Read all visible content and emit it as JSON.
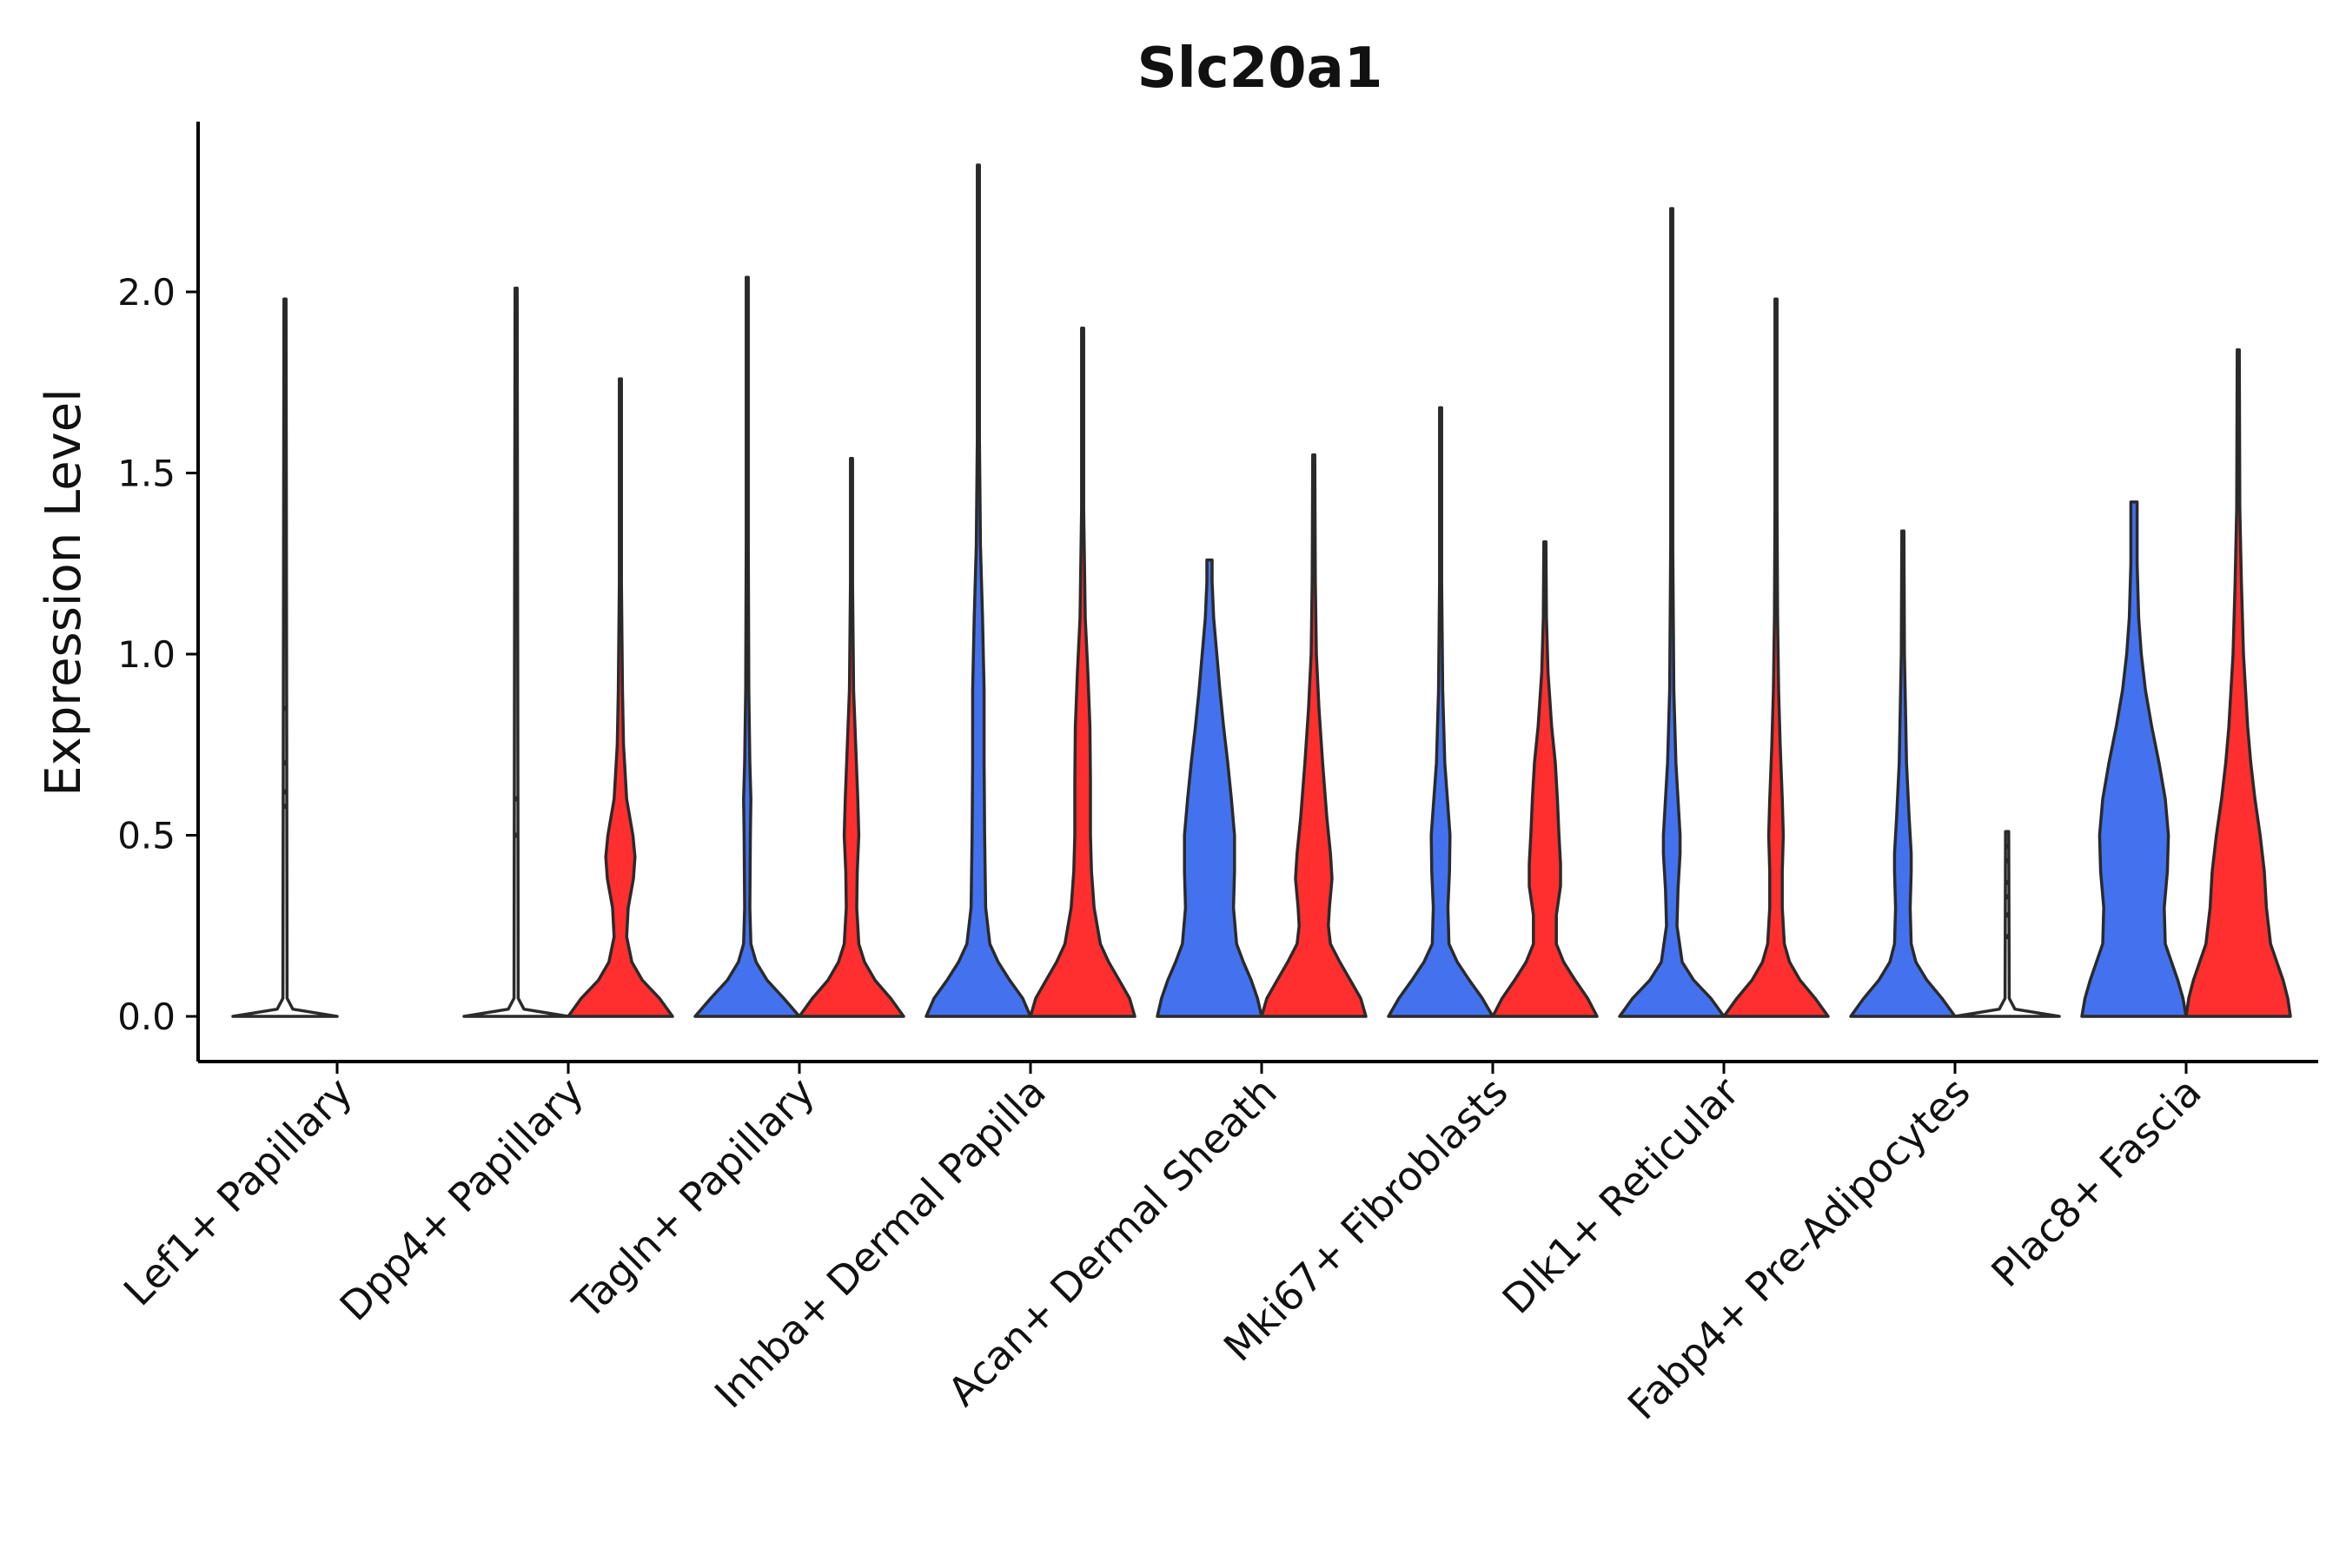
{
  "chart_data": {
    "type": "violin",
    "title": "Slc20a1",
    "xlabel": "",
    "ylabel": "Expression Level",
    "ylim": [
      -0.12,
      2.45
    ],
    "yticks": [
      0.0,
      0.5,
      1.0,
      1.5,
      2.0
    ],
    "ytick_labels": [
      "0.0",
      "0.5",
      "1.0",
      "1.5",
      "2.0"
    ],
    "categories": [
      "Lef1+ Papillary",
      "Dpp4+ Papillary",
      "Tagln+ Papillary",
      "Inhba+ Dermal Papilla",
      "Acan+ Dermal Sheath",
      "Mki67+ Fibroblasts",
      "Dlk1+ Reticular",
      "Fabp4+ Pre-Adipocytes",
      "Plac8+ Fascia"
    ],
    "groups": [
      {
        "name": "group-1",
        "color": "#4472ef"
      },
      {
        "name": "group-2",
        "color": "#ff2f2f"
      }
    ],
    "violins": [
      {
        "category": "Lef1+ Papillary",
        "group": "group-1",
        "fill": "none",
        "max": 1.98,
        "density": [
          [
            0,
            1.0
          ],
          [
            0.02,
            0.15
          ],
          [
            0.05,
            0.04
          ],
          [
            1.98,
            0.02
          ]
        ],
        "dots": [
          0.58,
          0.62,
          0.7,
          0.85
        ]
      },
      {
        "category": "Dpp4+ Papillary",
        "group": "group-1",
        "fill": "none",
        "max": 2.01,
        "density": [
          [
            0,
            1.0
          ],
          [
            0.02,
            0.15
          ],
          [
            0.05,
            0.04
          ],
          [
            2.01,
            0.02
          ]
        ],
        "dots": [
          0.5,
          0.6
        ]
      },
      {
        "category": "Dpp4+ Papillary",
        "group": "group-2",
        "fill": "#ff2f2f",
        "max": 1.76,
        "density": [
          [
            0,
            1.0
          ],
          [
            0.05,
            0.75
          ],
          [
            0.1,
            0.42
          ],
          [
            0.15,
            0.22
          ],
          [
            0.22,
            0.12
          ],
          [
            0.3,
            0.15
          ],
          [
            0.38,
            0.25
          ],
          [
            0.44,
            0.28
          ],
          [
            0.5,
            0.24
          ],
          [
            0.6,
            0.12
          ],
          [
            0.75,
            0.06
          ],
          [
            0.9,
            0.04
          ],
          [
            1.2,
            0.02
          ],
          [
            1.76,
            0.02
          ]
        ]
      },
      {
        "category": "Tagln+ Papillary",
        "group": "group-1",
        "fill": "#4472ef",
        "max": 2.04,
        "density": [
          [
            0,
            1.0
          ],
          [
            0.05,
            0.7
          ],
          [
            0.1,
            0.38
          ],
          [
            0.15,
            0.17
          ],
          [
            0.2,
            0.07
          ],
          [
            0.3,
            0.05
          ],
          [
            0.5,
            0.06
          ],
          [
            0.6,
            0.07
          ],
          [
            0.7,
            0.05
          ],
          [
            0.9,
            0.03
          ],
          [
            1.3,
            0.02
          ],
          [
            2.04,
            0.02
          ]
        ]
      },
      {
        "category": "Tagln+ Papillary",
        "group": "group-2",
        "fill": "#ff2f2f",
        "max": 1.54,
        "density": [
          [
            0,
            1.0
          ],
          [
            0.05,
            0.75
          ],
          [
            0.1,
            0.45
          ],
          [
            0.15,
            0.25
          ],
          [
            0.2,
            0.14
          ],
          [
            0.3,
            0.1
          ],
          [
            0.4,
            0.11
          ],
          [
            0.5,
            0.14
          ],
          [
            0.6,
            0.12
          ],
          [
            0.75,
            0.08
          ],
          [
            0.9,
            0.04
          ],
          [
            1.2,
            0.02
          ],
          [
            1.54,
            0.02
          ]
        ]
      },
      {
        "category": "Inhba+ Dermal Papilla",
        "group": "group-1",
        "fill": "#4472ef",
        "max": 2.35,
        "density": [
          [
            0,
            1.0
          ],
          [
            0.05,
            0.85
          ],
          [
            0.1,
            0.6
          ],
          [
            0.15,
            0.38
          ],
          [
            0.2,
            0.22
          ],
          [
            0.3,
            0.14
          ],
          [
            0.5,
            0.12
          ],
          [
            0.7,
            0.11
          ],
          [
            0.9,
            0.11
          ],
          [
            1.1,
            0.08
          ],
          [
            1.3,
            0.04
          ],
          [
            1.6,
            0.02
          ],
          [
            2.35,
            0.02
          ]
        ]
      },
      {
        "category": "Inhba+ Dermal Papilla",
        "group": "group-2",
        "fill": "#ff2f2f",
        "max": 1.9,
        "density": [
          [
            0,
            1.0
          ],
          [
            0.05,
            0.9
          ],
          [
            0.1,
            0.7
          ],
          [
            0.15,
            0.5
          ],
          [
            0.2,
            0.34
          ],
          [
            0.3,
            0.22
          ],
          [
            0.4,
            0.17
          ],
          [
            0.5,
            0.15
          ],
          [
            0.65,
            0.15
          ],
          [
            0.8,
            0.14
          ],
          [
            0.95,
            0.1
          ],
          [
            1.1,
            0.05
          ],
          [
            1.4,
            0.02
          ],
          [
            1.9,
            0.02
          ]
        ]
      },
      {
        "category": "Acan+ Dermal Sheath",
        "group": "group-1",
        "fill": "#4472ef",
        "max": 1.26,
        "density": [
          [
            0,
            1.0
          ],
          [
            0.05,
            0.92
          ],
          [
            0.1,
            0.8
          ],
          [
            0.15,
            0.65
          ],
          [
            0.2,
            0.52
          ],
          [
            0.3,
            0.46
          ],
          [
            0.4,
            0.48
          ],
          [
            0.5,
            0.48
          ],
          [
            0.6,
            0.42
          ],
          [
            0.7,
            0.35
          ],
          [
            0.8,
            0.27
          ],
          [
            0.9,
            0.2
          ],
          [
            1.0,
            0.14
          ],
          [
            1.1,
            0.08
          ],
          [
            1.2,
            0.05
          ],
          [
            1.26,
            0.05
          ]
        ]
      },
      {
        "category": "Acan+ Dermal Sheath",
        "group": "group-2",
        "fill": "#ff2f2f",
        "max": 1.55,
        "density": [
          [
            0,
            1.0
          ],
          [
            0.05,
            0.9
          ],
          [
            0.1,
            0.7
          ],
          [
            0.15,
            0.5
          ],
          [
            0.2,
            0.32
          ],
          [
            0.25,
            0.28
          ],
          [
            0.3,
            0.3
          ],
          [
            0.38,
            0.35
          ],
          [
            0.45,
            0.32
          ],
          [
            0.55,
            0.25
          ],
          [
            0.7,
            0.17
          ],
          [
            0.85,
            0.1
          ],
          [
            1.0,
            0.05
          ],
          [
            1.2,
            0.03
          ],
          [
            1.55,
            0.02
          ]
        ]
      },
      {
        "category": "Mki67+ Fibroblasts",
        "group": "group-1",
        "fill": "#4472ef",
        "max": 1.68,
        "density": [
          [
            0,
            1.0
          ],
          [
            0.05,
            0.8
          ],
          [
            0.1,
            0.55
          ],
          [
            0.15,
            0.32
          ],
          [
            0.2,
            0.16
          ],
          [
            0.3,
            0.14
          ],
          [
            0.4,
            0.17
          ],
          [
            0.5,
            0.18
          ],
          [
            0.6,
            0.13
          ],
          [
            0.7,
            0.08
          ],
          [
            0.9,
            0.04
          ],
          [
            1.2,
            0.02
          ],
          [
            1.68,
            0.02
          ]
        ]
      },
      {
        "category": "Mki67+ Fibroblasts",
        "group": "group-2",
        "fill": "#ff2f2f",
        "max": 1.31,
        "density": [
          [
            0,
            1.0
          ],
          [
            0.05,
            0.82
          ],
          [
            0.1,
            0.58
          ],
          [
            0.15,
            0.36
          ],
          [
            0.2,
            0.22
          ],
          [
            0.28,
            0.22
          ],
          [
            0.36,
            0.3
          ],
          [
            0.42,
            0.3
          ],
          [
            0.5,
            0.27
          ],
          [
            0.6,
            0.24
          ],
          [
            0.7,
            0.2
          ],
          [
            0.8,
            0.13
          ],
          [
            0.95,
            0.06
          ],
          [
            1.1,
            0.03
          ],
          [
            1.31,
            0.02
          ]
        ]
      },
      {
        "category": "Dlk1+ Reticular",
        "group": "group-1",
        "fill": "#4472ef",
        "max": 2.23,
        "density": [
          [
            0,
            1.0
          ],
          [
            0.05,
            0.75
          ],
          [
            0.1,
            0.42
          ],
          [
            0.15,
            0.2
          ],
          [
            0.25,
            0.1
          ],
          [
            0.35,
            0.12
          ],
          [
            0.45,
            0.16
          ],
          [
            0.5,
            0.16
          ],
          [
            0.6,
            0.12
          ],
          [
            0.7,
            0.08
          ],
          [
            0.9,
            0.04
          ],
          [
            1.3,
            0.02
          ],
          [
            2.23,
            0.02
          ]
        ]
      },
      {
        "category": "Dlk1+ Reticular",
        "group": "group-2",
        "fill": "#ff2f2f",
        "max": 1.98,
        "density": [
          [
            0,
            1.0
          ],
          [
            0.05,
            0.75
          ],
          [
            0.1,
            0.46
          ],
          [
            0.15,
            0.26
          ],
          [
            0.2,
            0.16
          ],
          [
            0.3,
            0.12
          ],
          [
            0.4,
            0.12
          ],
          [
            0.5,
            0.14
          ],
          [
            0.6,
            0.12
          ],
          [
            0.75,
            0.08
          ],
          [
            0.9,
            0.05
          ],
          [
            1.1,
            0.03
          ],
          [
            1.4,
            0.02
          ],
          [
            1.98,
            0.02
          ]
        ]
      },
      {
        "category": "Fabp4+ Pre-Adipocytes",
        "group": "group-1",
        "fill": "#4472ef",
        "max": 1.34,
        "density": [
          [
            0,
            1.0
          ],
          [
            0.05,
            0.75
          ],
          [
            0.1,
            0.46
          ],
          [
            0.15,
            0.25
          ],
          [
            0.2,
            0.16
          ],
          [
            0.3,
            0.14
          ],
          [
            0.4,
            0.16
          ],
          [
            0.45,
            0.16
          ],
          [
            0.55,
            0.12
          ],
          [
            0.7,
            0.07
          ],
          [
            0.85,
            0.05
          ],
          [
            1.0,
            0.03
          ],
          [
            1.34,
            0.02
          ]
        ]
      },
      {
        "category": "Fabp4+ Pre-Adipocytes",
        "group": "group-2",
        "fill": "none",
        "max": 0.51,
        "density": [
          [
            0,
            1.0
          ],
          [
            0.02,
            0.15
          ],
          [
            0.05,
            0.04
          ],
          [
            0.51,
            0.03
          ]
        ],
        "dots": [
          0.22,
          0.28,
          0.33,
          0.37,
          0.43,
          0.47
        ]
      },
      {
        "category": "Plac8+ Fascia",
        "group": "group-1",
        "fill": "#4472ef",
        "max": 1.42,
        "density": [
          [
            0,
            1.0
          ],
          [
            0.05,
            0.94
          ],
          [
            0.1,
            0.84
          ],
          [
            0.15,
            0.72
          ],
          [
            0.2,
            0.6
          ],
          [
            0.3,
            0.58
          ],
          [
            0.4,
            0.64
          ],
          [
            0.5,
            0.66
          ],
          [
            0.6,
            0.6
          ],
          [
            0.7,
            0.48
          ],
          [
            0.8,
            0.34
          ],
          [
            0.9,
            0.22
          ],
          [
            1.0,
            0.14
          ],
          [
            1.1,
            0.09
          ],
          [
            1.25,
            0.06
          ],
          [
            1.42,
            0.06
          ]
        ]
      },
      {
        "category": "Plac8+ Fascia",
        "group": "group-2",
        "fill": "#ff2f2f",
        "max": 1.84,
        "density": [
          [
            0,
            1.0
          ],
          [
            0.05,
            0.95
          ],
          [
            0.1,
            0.86
          ],
          [
            0.15,
            0.74
          ],
          [
            0.2,
            0.62
          ],
          [
            0.3,
            0.54
          ],
          [
            0.4,
            0.5
          ],
          [
            0.5,
            0.42
          ],
          [
            0.6,
            0.32
          ],
          [
            0.7,
            0.24
          ],
          [
            0.8,
            0.18
          ],
          [
            0.9,
            0.14
          ],
          [
            1.0,
            0.1
          ],
          [
            1.2,
            0.06
          ],
          [
            1.4,
            0.03
          ],
          [
            1.84,
            0.02
          ]
        ]
      }
    ]
  }
}
